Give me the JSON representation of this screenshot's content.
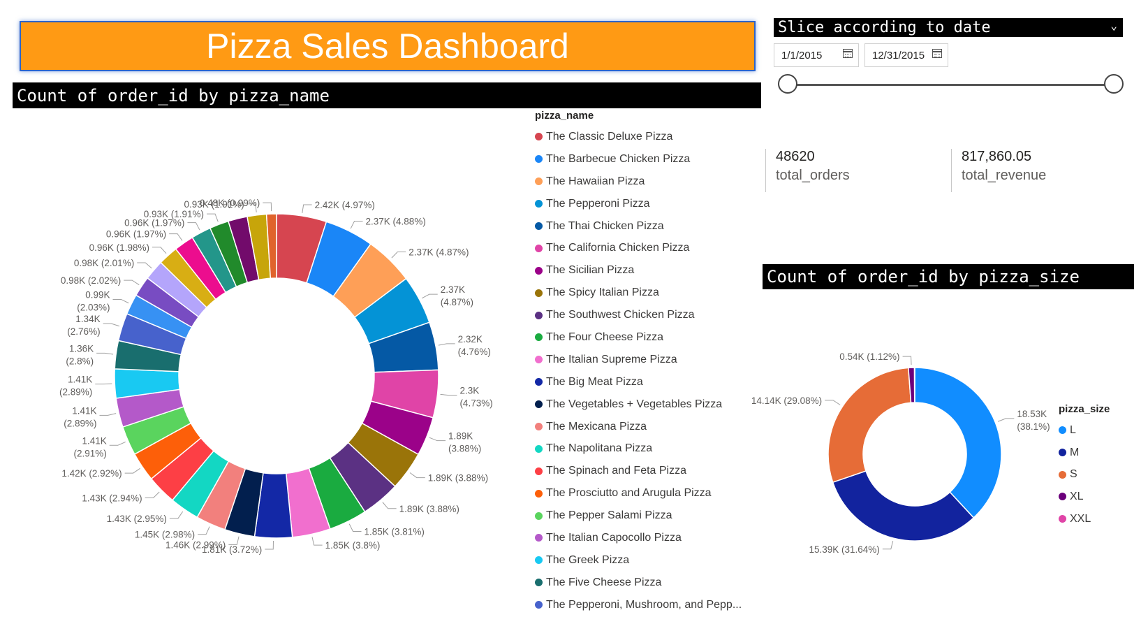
{
  "dashboard": {
    "title": "Pizza Sales Dashboard"
  },
  "slicer": {
    "title": "Slice according to date",
    "start_date": "1/1/2015",
    "end_date": "12/31/2015"
  },
  "cards": [
    {
      "value": "48620",
      "label": "total_orders"
    },
    {
      "value": "817,860.05",
      "label": "total_revenue"
    }
  ],
  "chart_data": [
    {
      "type": "donut",
      "title": "Count of order_id by pizza_name",
      "legend_title": "pizza_name",
      "slices": [
        {
          "name": "The Classic Deluxe Pizza",
          "label": "2.42K (4.97%)",
          "value": 2416,
          "color": "#d64550"
        },
        {
          "name": "The Barbecue Chicken Pizza",
          "label": "2.37K (4.88%)",
          "value": 2372,
          "color": "#1a86f7"
        },
        {
          "name": "The Hawaiian Pizza",
          "label": "2.37K (4.87%)",
          "value": 2370,
          "color": "#fe9f57"
        },
        {
          "name": "The Pepperoni Pizza",
          "label": "2.37K (4.87%)",
          "value": 2369,
          "color": "#0493d6"
        },
        {
          "name": "The Thai Chicken Pizza",
          "label": "2.32K (4.76%)",
          "value": 2315,
          "color": "#0559a5"
        },
        {
          "name": "The California Chicken Pizza",
          "label": "2.3K (4.73%)",
          "value": 2302,
          "color": "#e044a7"
        },
        {
          "name": "The Sicilian Pizza",
          "label": "1.89K (3.88%)",
          "value": 1887,
          "color": "#9b0289"
        },
        {
          "name": "The Spicy Italian Pizza",
          "label": "1.89K (3.88%)",
          "value": 1887,
          "color": "#9a7409"
        },
        {
          "name": "The Southwest Chicken Pizza",
          "label": "1.89K (3.88%)",
          "value": 1885,
          "color": "#5b3183"
        },
        {
          "name": "The Four Cheese Pizza",
          "label": "1.85K (3.81%)",
          "value": 1850,
          "color": "#1aab40"
        },
        {
          "name": "The Italian Supreme Pizza",
          "label": "1.85K (3.8%)",
          "value": 1849,
          "color": "#f16fce"
        },
        {
          "name": "The Big Meat Pizza",
          "label": "1.81K (3.72%)",
          "value": 1811,
          "color": "#1328a6"
        },
        {
          "name": "The Vegetables + Vegetables Pizza",
          "label": "1.46K (2.99%)",
          "value": 1455,
          "color": "#021f4e"
        },
        {
          "name": "The Mexicana Pizza",
          "label": "1.45K (2.98%)",
          "value": 1449,
          "color": "#f2807d"
        },
        {
          "name": "The Napolitana Pizza",
          "label": "1.43K (2.95%)",
          "value": 1434,
          "color": "#13d7c3"
        },
        {
          "name": "The Spinach and Feta Pizza",
          "label": "1.43K (2.94%)",
          "value": 1432,
          "color": "#fd3f45"
        },
        {
          "name": "The Prosciutto and Arugula Pizza",
          "label": "1.42K (2.92%)",
          "value": 1419,
          "color": "#fd5f09"
        },
        {
          "name": "The Pepper Salami Pizza",
          "label": "1.41K (2.91%)",
          "value": 1415,
          "color": "#5ad45e"
        },
        {
          "name": "The Italian Capocollo Pizza",
          "label": "1.41K (2.89%)",
          "value": 1406,
          "color": "#b459c9"
        },
        {
          "name": "The Greek Pizza",
          "label": "1.41K (2.89%)",
          "value": 1406,
          "color": "#19c9f2"
        },
        {
          "name": "The Five Cheese Pizza",
          "label": "1.36K (2.8%)",
          "value": 1359,
          "color": "#196e6e"
        },
        {
          "name": "The Pepperoni, Mushroom, and Pepp...",
          "label": "1.34K (2.76%)",
          "value": 1342,
          "color": "#4762cc"
        },
        {
          "name": "",
          "label": "0.99K (2.03%)",
          "value": 987,
          "color": "#3791f3"
        },
        {
          "name": "",
          "label": "0.98K (2.02%)",
          "value": 980,
          "color": "#784cc2"
        },
        {
          "name": "",
          "label": "0.98K (2.01%)",
          "value": 978,
          "color": "#b4a5fb"
        },
        {
          "name": "",
          "label": "0.96K (1.98%)",
          "value": 962,
          "color": "#d8ae14"
        },
        {
          "name": "",
          "label": "0.96K (1.97%)",
          "value": 960,
          "color": "#ec0d8e"
        },
        {
          "name": "",
          "label": "0.96K (1.97%)",
          "value": 959,
          "color": "#23968a"
        },
        {
          "name": "",
          "label": "0.93K (1.91%)",
          "value": 928,
          "color": "#218a2b"
        },
        {
          "name": "",
          "label": "",
          "value": 928,
          "color": "#720b6b"
        },
        {
          "name": "",
          "label": "0.93K (1.91%)",
          "value": 928,
          "color": "#c7a50a"
        },
        {
          "name": "",
          "label": "0.48K (0.99%)",
          "value": 480,
          "color": "#e0632c"
        }
      ]
    },
    {
      "type": "donut",
      "title": "Count of order_id by pizza_size",
      "legend_title": "pizza_size",
      "slices": [
        {
          "name": "L",
          "label": "18.53K (38.1%)",
          "value": 18526,
          "color": "#118dff"
        },
        {
          "name": "M",
          "label": "15.39K (31.64%)",
          "value": 15385,
          "color": "#12239e"
        },
        {
          "name": "S",
          "label": "14.14K (29.08%)",
          "value": 14137,
          "color": "#e66c37"
        },
        {
          "name": "XL",
          "label": "0.54K (1.12%)",
          "value": 544,
          "color": "#6b007b"
        },
        {
          "name": "XXL",
          "label": "",
          "value": 28,
          "color": "#e044a7"
        }
      ]
    }
  ]
}
